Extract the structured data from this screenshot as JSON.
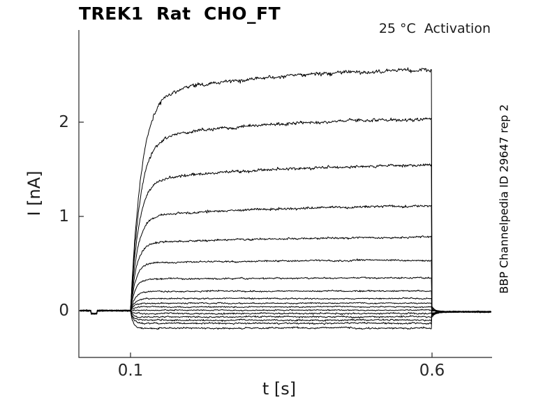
{
  "header": {
    "title": "TREK1  Rat  CHO_FT",
    "annotation": "25 °C  Activation"
  },
  "watermark": "BBP Channelpedia ID 29647 rep 2",
  "axes": {
    "x_label": "t [s]",
    "y_label": "I [nA]",
    "x_tick_labels": [
      "0.1",
      "0.6"
    ],
    "y_tick_labels": [
      "0",
      "1",
      "2"
    ]
  },
  "chart_data": {
    "type": "line",
    "title": "TREK1  Rat  CHO_FT",
    "xlabel": "t [s]",
    "ylabel": "I [nA]",
    "x_ticks": [
      0.1,
      0.6
    ],
    "y_ticks": [
      0,
      1,
      2
    ],
    "xlim": [
      0.016,
      0.7
    ],
    "ylim": [
      -0.5,
      2.98
    ],
    "grid": false,
    "legend": "none",
    "line_color": "#000000",
    "axis_color": "#262626",
    "protocol": {
      "baseline_nA": 0.0,
      "pulse_on_s": 0.1,
      "pulse_off_s": 0.6,
      "post_pulse_offset_nA": -0.012
    },
    "sweeps_steady_state_nA": [
      2.6,
      2.07,
      1.57,
      1.13,
      0.79,
      0.54,
      0.35,
      0.21,
      0.13,
      0.08,
      0.04,
      0.005,
      -0.03,
      -0.065,
      -0.1,
      -0.135,
      -0.185
    ],
    "activation_tau_fast_s": 0.012,
    "activation_tau_slow_s": 0.25,
    "slow_fraction": 0.12,
    "baseline_artifact": {
      "t_s": 0.04,
      "amplitude_nA": -0.032,
      "duration_s": 0.01
    }
  }
}
